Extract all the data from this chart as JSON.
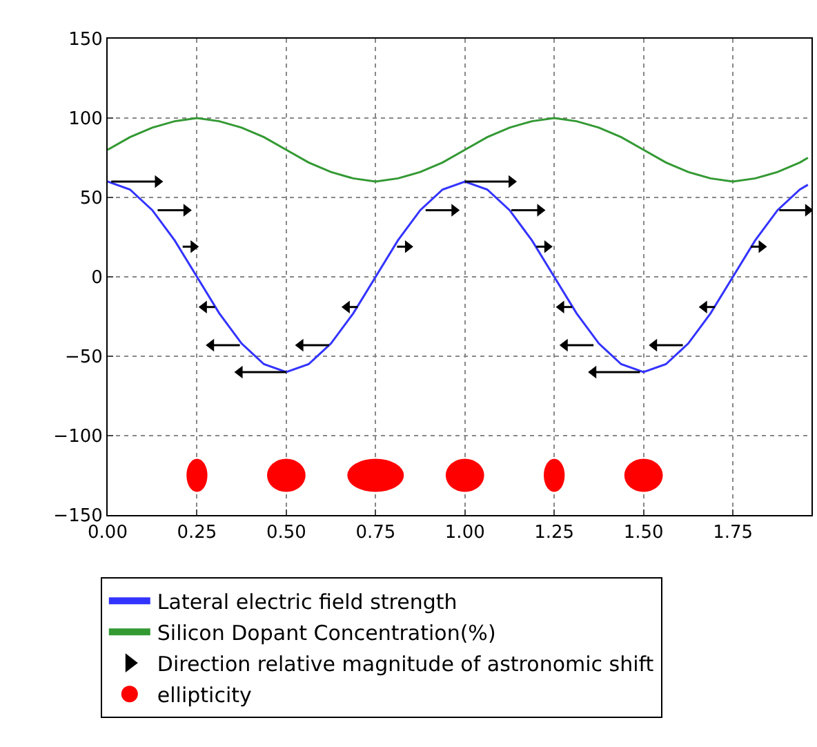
{
  "chart_data": {
    "type": "line",
    "xlim": [
      0,
      1.97
    ],
    "ylim": [
      -150,
      150
    ],
    "xticks": [
      {
        "value": 0,
        "label": "0.00"
      },
      {
        "value": 0.25,
        "label": "0.25"
      },
      {
        "value": 0.5,
        "label": "0.50"
      },
      {
        "value": 0.75,
        "label": "0.75"
      },
      {
        "value": 1,
        "label": "1.00"
      },
      {
        "value": 1.25,
        "label": "1.25"
      },
      {
        "value": 1.5,
        "label": "1.50"
      },
      {
        "value": 1.75,
        "label": "1.75"
      }
    ],
    "yticks": [
      {
        "value": -150,
        "label": "−150"
      },
      {
        "value": -100,
        "label": "−100"
      },
      {
        "value": -50,
        "label": "−50"
      },
      0,
      50,
      100,
      150
    ],
    "grid": true,
    "legend": "bottom",
    "series": [
      {
        "name": "Lateral electric field strength",
        "color": "#3333ff",
        "x": [
          0,
          0.0625,
          0.125,
          0.1875,
          0.25,
          0.3125,
          0.375,
          0.4375,
          0.5,
          0.5625,
          0.625,
          0.6875,
          0.75,
          0.8125,
          0.875,
          0.9375,
          1,
          1.0625,
          1.125,
          1.1875,
          1.25,
          1.3125,
          1.375,
          1.4375,
          1.5,
          1.5625,
          1.625,
          1.6875,
          1.75,
          1.8125,
          1.875,
          1.9375,
          1.96
        ],
        "values": [
          60,
          55,
          42,
          23,
          0,
          -23,
          -42,
          -55,
          -60,
          -55,
          -42,
          -23,
          0,
          23,
          42,
          55,
          60,
          55,
          42,
          23,
          0,
          -23,
          -42,
          -55,
          -60,
          -55,
          -42,
          -23,
          0,
          23,
          42,
          55,
          58
        ]
      },
      {
        "name": "Silicon Dopant Concentration(%)",
        "color": "#339933",
        "x": [
          0,
          0.0625,
          0.125,
          0.1875,
          0.25,
          0.3125,
          0.375,
          0.4375,
          0.5,
          0.5625,
          0.625,
          0.6875,
          0.75,
          0.8125,
          0.875,
          0.9375,
          1,
          1.0625,
          1.125,
          1.1875,
          1.25,
          1.3125,
          1.375,
          1.4375,
          1.5,
          1.5625,
          1.625,
          1.6875,
          1.75,
          1.8125,
          1.875,
          1.9375,
          1.96
        ],
        "values": [
          80,
          88,
          94,
          98,
          100,
          98,
          94,
          88,
          80,
          72,
          66,
          62,
          60,
          62,
          66,
          72,
          80,
          88,
          94,
          98,
          100,
          98,
          94,
          88,
          80,
          72,
          66,
          62,
          60,
          62,
          66,
          72,
          75
        ]
      },
      {
        "name": "Direction relative magnitude of astronomic shift",
        "type": "scatter",
        "marker": "triangle",
        "color": "#000000",
        "x": [
          0.14,
          0.22,
          0.24,
          0.27,
          0.29,
          0.37,
          0.54,
          0.67,
          0.84,
          0.97,
          1.13,
          1.21,
          1.23,
          1.27,
          1.28,
          1.36,
          1.53,
          1.67,
          1.83,
          1.96
        ],
        "values": [
          60,
          42,
          19,
          -19,
          -43,
          -60,
          -43,
          -19,
          19,
          42,
          60,
          42,
          19,
          -19,
          -43,
          -60,
          -43,
          -19,
          19,
          42
        ],
        "xerrors": [
          [
            0.01,
            0.14
          ],
          [
            0.14,
            0.22
          ],
          [
            0.21,
            0.24
          ],
          [
            0.27,
            0.3
          ],
          [
            0.29,
            0.37
          ],
          [
            0.37,
            0.5
          ],
          [
            0.54,
            0.62
          ],
          [
            0.67,
            0.7
          ],
          [
            0.81,
            0.84
          ],
          [
            0.89,
            0.97
          ],
          [
            1.0,
            1.13
          ],
          [
            1.13,
            1.21
          ],
          [
            1.2,
            1.23
          ],
          [
            1.27,
            1.3
          ],
          [
            1.28,
            1.36
          ],
          [
            1.36,
            1.49
          ],
          [
            1.53,
            1.61
          ],
          [
            1.67,
            1.7
          ],
          [
            1.8,
            1.83
          ],
          [
            1.88,
            1.96
          ]
        ]
      },
      {
        "name": "ellipticity",
        "type": "scatter",
        "marker": "circle",
        "color": "#ff0000",
        "x": [
          0.25,
          0.5,
          0.75,
          1,
          1.25,
          1.5
        ],
        "values": [
          -125,
          -125,
          -125,
          -125,
          -125,
          -125
        ],
        "sizes": [
          0.37,
          0.68,
          1,
          0.68,
          0.37,
          0.68
        ]
      }
    ]
  }
}
